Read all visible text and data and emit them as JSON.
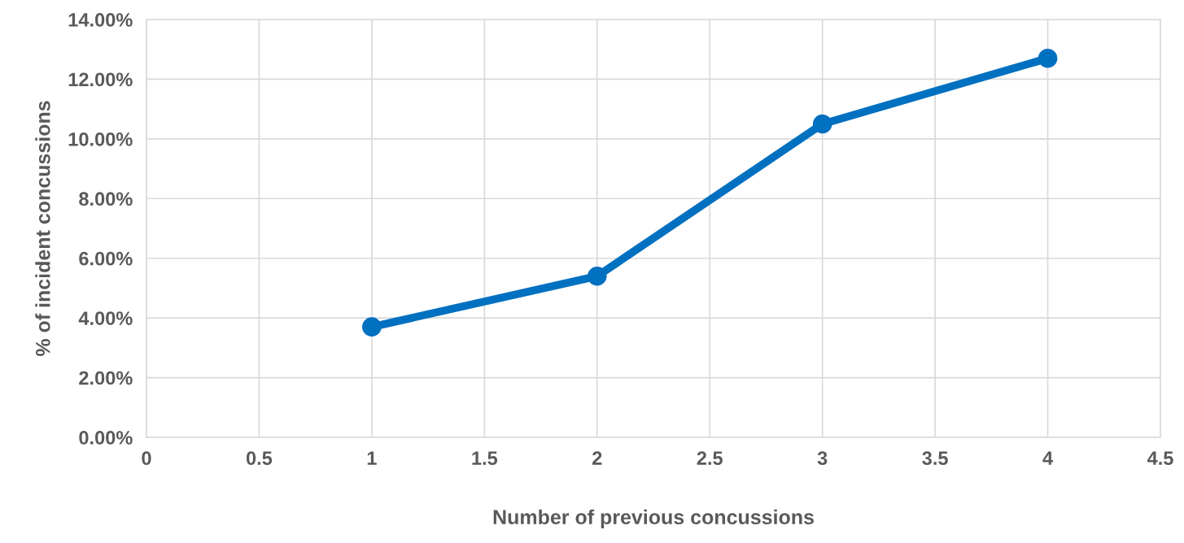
{
  "chart_data": {
    "type": "line",
    "xlabel": "Number of previous concussions",
    "ylabel": "% of incident concussions",
    "x": [
      1,
      2,
      3,
      4
    ],
    "series": [
      {
        "color": "#0070c0",
        "values": [
          3.7,
          5.4,
          10.5,
          12.7
        ]
      }
    ],
    "xlim": [
      0,
      4.5
    ],
    "xticks": [
      0,
      0.5,
      1,
      1.5,
      2,
      2.5,
      3,
      3.5,
      4,
      4.5
    ],
    "ylim": [
      0,
      14
    ],
    "yticks": [
      {
        "value": 0,
        "label": "0.00%"
      },
      {
        "value": 2,
        "label": "2.00%"
      },
      {
        "value": 4,
        "label": "4.00%"
      },
      {
        "value": 6,
        "label": "6.00%"
      },
      {
        "value": 8,
        "label": "8.00%"
      },
      {
        "value": 10,
        "label": "10.00%"
      },
      {
        "value": 12,
        "label": "12.00%"
      },
      {
        "value": 14,
        "label": "14.00%"
      }
    ],
    "grid": true,
    "marker": "circle",
    "line_style": "solid"
  }
}
